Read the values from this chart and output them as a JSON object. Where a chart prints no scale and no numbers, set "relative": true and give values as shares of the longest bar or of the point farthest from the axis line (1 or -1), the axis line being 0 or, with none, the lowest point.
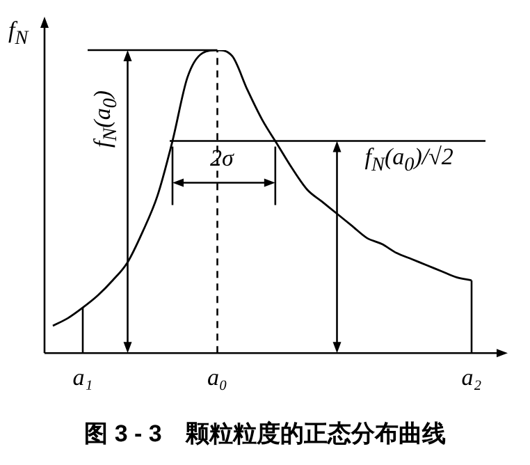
{
  "chart_data": {
    "type": "line",
    "title": "图 3 - 3　颗粒粒度的正态分布曲线",
    "ylabel": "f$_{N}$",
    "categories": [
      null,
      null,
      "a₁",
      null,
      null,
      null,
      null,
      null,
      null,
      null,
      null,
      "a₀",
      null,
      null,
      null,
      null,
      null,
      null,
      null,
      null,
      null,
      null,
      null,
      null,
      null,
      null,
      null,
      null,
      "a₂"
    ],
    "values": [
      0.09,
      0.115,
      0.15,
      0.19,
      0.24,
      0.3,
      0.4,
      0.52,
      0.7,
      0.91,
      0.99,
      1,
      0.98,
      0.87,
      0.77,
      0.69,
      0.61,
      0.54,
      0.5,
      0.46,
      0.42,
      0.38,
      0.36,
      0.33,
      0.31,
      0.29,
      0.27,
      0.25,
      0.24
    ],
    "color": "#000000",
    "relative": true,
    "grid": false,
    "legend": false,
    "tick_labels": "x",
    "annotations": [
      "2σ"
    ],
    "ref_lines": [
      {
        "axis": "x",
        "value": "a₁",
        "line_style": "solid"
      },
      {
        "axis": "x",
        "value": "a₀",
        "line_style": "dashed"
      },
      {
        "axis": "x",
        "value": "a₂",
        "line_style": "solid"
      },
      {
        "axis": "y",
        "value": 1,
        "label": "f$_{N}$(a$_{0}$)"
      },
      {
        "axis": "y",
        "value": 0.7,
        "label": "f$_{N}$(a$_{0}$)/√2"
      }
    ]
  }
}
